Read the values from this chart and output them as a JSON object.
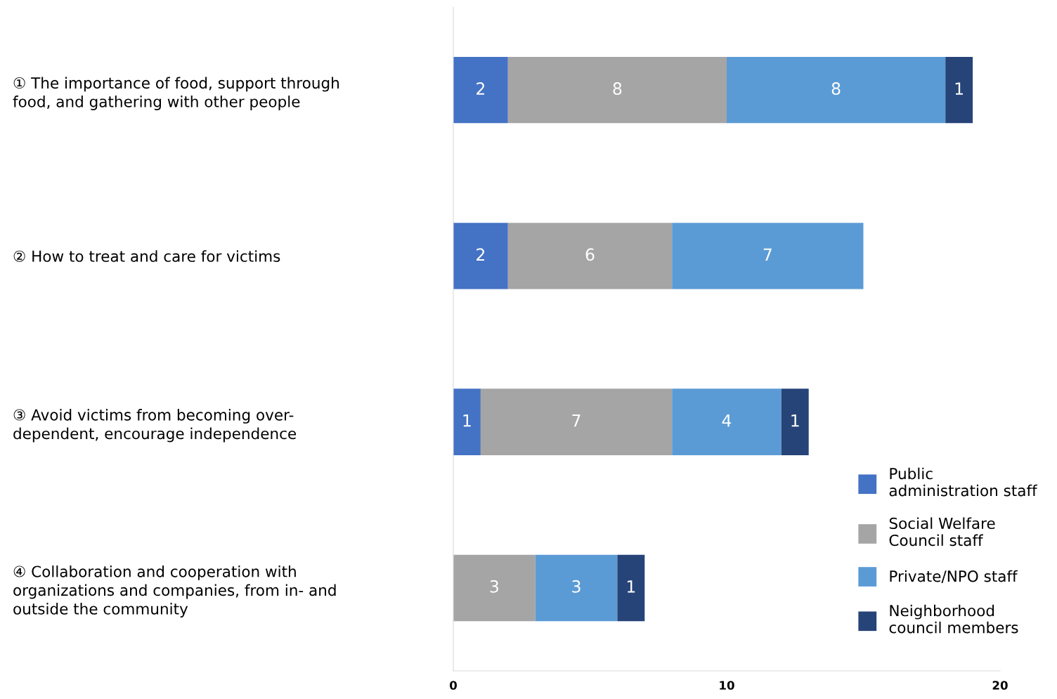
{
  "chart_data": {
    "type": "bar",
    "orientation": "horizontal",
    "stacked": true,
    "data_labels": true,
    "grid": false,
    "legend": "bottom right",
    "categories": [
      "① The importance of food, support through\nfood, and gathering with other people",
      "② How to treat and care for victims",
      "③ Avoid victims from becoming over-\ndependent, encourage independence",
      "④ Collaboration and cooperation with\norganizations and companies, from in- and\noutside the community"
    ],
    "series": [
      {
        "name": "Public\nadministration staff",
        "color": "#4472c4",
        "values": [
          2,
          2,
          1,
          null
        ]
      },
      {
        "name": "Social Welfare\nCouncil staff",
        "color": "#a5a5a5",
        "values": [
          8,
          6,
          7,
          3
        ]
      },
      {
        "name": "Private/NPO staff",
        "color": "#5b9bd5",
        "values": [
          8,
          7,
          4,
          3
        ]
      },
      {
        "name": "Neighborhood\ncouncil members",
        "color": "#264478",
        "values": [
          1,
          null,
          1,
          1
        ]
      }
    ],
    "xlim": [
      0,
      20
    ],
    "xticks": [
      0,
      10,
      20
    ]
  }
}
